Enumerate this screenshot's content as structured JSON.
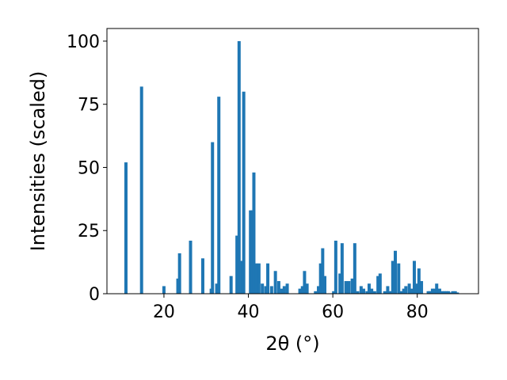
{
  "chart_data": {
    "type": "bar",
    "xlabel": "2θ (°)",
    "ylabel": "Intensities (scaled)",
    "xlim": [
      6.5,
      94.5
    ],
    "ylim": [
      0,
      105
    ],
    "xticks": [
      20,
      40,
      60,
      80
    ],
    "yticks": [
      0,
      25,
      50,
      75,
      100
    ],
    "grid": false,
    "bar_color": "#1f77b4",
    "bar_width": 0.75,
    "series": [
      {
        "x": [
          11.0,
          14.7,
          20.0,
          23.3,
          23.7,
          26.3,
          29.2,
          31.2,
          31.5,
          32.5,
          33.0,
          35.9,
          37.3,
          37.8,
          38.5,
          38.9,
          40.5,
          40.9,
          41.3,
          41.8,
          42.5,
          43.3,
          44.1,
          44.6,
          45.5,
          46.4,
          47.2,
          47.9,
          48.5,
          49.2,
          52.2,
          52.8,
          53.3,
          53.9,
          55.9,
          56.6,
          57.1,
          57.6,
          58.1,
          60.2,
          60.7,
          61.7,
          62.2,
          63.1,
          63.8,
          64.6,
          65.2,
          65.9,
          66.7,
          67.3,
          68.1,
          68.6,
          69.2,
          69.9,
          70.7,
          71.2,
          72.3,
          73.0,
          73.7,
          74.2,
          74.8,
          75.6,
          76.3,
          76.8,
          77.3,
          78.1,
          78.8,
          79.3,
          79.8,
          80.4,
          81.0,
          82.6,
          83.0,
          83.6,
          84.1,
          84.6,
          85.3,
          85.9,
          86.4,
          86.9,
          87.4,
          88.0,
          88.4,
          89.0,
          89.5
        ],
        "values": [
          52,
          82,
          3,
          6,
          16,
          21,
          14,
          2,
          60,
          4,
          78,
          7,
          23,
          100,
          13,
          80,
          33,
          33,
          48,
          12,
          12,
          4,
          3,
          12,
          3,
          9,
          5,
          2,
          3,
          4,
          2,
          3,
          9,
          4,
          1,
          3,
          12,
          18,
          7,
          1,
          21,
          8,
          20,
          5,
          5,
          6,
          20,
          1,
          3,
          2,
          1,
          4,
          2,
          1,
          7,
          8,
          1,
          3,
          1,
          13,
          17,
          12,
          1,
          2,
          3,
          4,
          2,
          13,
          4,
          10,
          5,
          1,
          1,
          2,
          2,
          4,
          2,
          1,
          1,
          1,
          1,
          0.5,
          1,
          1,
          0.5
        ]
      }
    ]
  }
}
